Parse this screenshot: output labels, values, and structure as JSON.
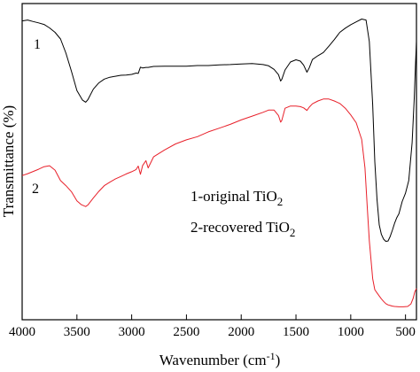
{
  "chart_data": {
    "type": "line",
    "xlabel": "Wavenumber (cm",
    "xlabel_sup": "-1",
    "xlabel_close": ")",
    "ylabel": "Transmittance (%)",
    "xlim": [
      4000,
      400
    ],
    "x_reversed": true,
    "ylim": [
      0,
      100
    ],
    "y_ticks_shown": false,
    "x_ticks": [
      4000,
      3500,
      3000,
      2500,
      2000,
      1500,
      1000,
      500
    ],
    "x_tick_labels": [
      "4000",
      "3500",
      "3000",
      "2500",
      "2000",
      "1500",
      "1000",
      "500"
    ],
    "grid": false,
    "legend": {
      "placement": "center-right",
      "entries": [
        {
          "prefix": "1-original TiO",
          "sub": "2"
        },
        {
          "prefix": "2-recovered TiO",
          "sub": "2"
        }
      ]
    },
    "series": [
      {
        "name": "1",
        "color": "#000000",
        "points": [
          [
            4000,
            94.5
          ],
          [
            3950,
            94.8
          ],
          [
            3900,
            94.3
          ],
          [
            3850,
            93.9
          ],
          [
            3800,
            93.4
          ],
          [
            3750,
            92.3
          ],
          [
            3700,
            90.9
          ],
          [
            3650,
            88.8
          ],
          [
            3600,
            84.3
          ],
          [
            3550,
            78.6
          ],
          [
            3500,
            72.5
          ],
          [
            3450,
            69.5
          ],
          [
            3420,
            68.8
          ],
          [
            3400,
            69.6
          ],
          [
            3350,
            72.9
          ],
          [
            3300,
            74.9
          ],
          [
            3250,
            76.1
          ],
          [
            3200,
            76.7
          ],
          [
            3150,
            77.0
          ],
          [
            3100,
            77.3
          ],
          [
            3050,
            77.4
          ],
          [
            3000,
            77.6
          ],
          [
            2960,
            78.0
          ],
          [
            2940,
            77.9
          ],
          [
            2920,
            79.9
          ],
          [
            2900,
            79.6
          ],
          [
            2870,
            79.8
          ],
          [
            2850,
            79.8
          ],
          [
            2800,
            80.1
          ],
          [
            2700,
            80.2
          ],
          [
            2600,
            80.2
          ],
          [
            2500,
            80.2
          ],
          [
            2400,
            80.4
          ],
          [
            2300,
            80.4
          ],
          [
            2200,
            80.6
          ],
          [
            2100,
            80.7
          ],
          [
            2000,
            80.9
          ],
          [
            1900,
            81.0
          ],
          [
            1800,
            80.7
          ],
          [
            1750,
            80.3
          ],
          [
            1700,
            79.2
          ],
          [
            1660,
            77.5
          ],
          [
            1640,
            75.5
          ],
          [
            1630,
            76.0
          ],
          [
            1600,
            79.0
          ],
          [
            1550,
            81.5
          ],
          [
            1500,
            82.2
          ],
          [
            1460,
            81.8
          ],
          [
            1430,
            80.5
          ],
          [
            1400,
            78.3
          ],
          [
            1380,
            79.6
          ],
          [
            1350,
            82.3
          ],
          [
            1300,
            83.5
          ],
          [
            1250,
            84.5
          ],
          [
            1200,
            86.5
          ],
          [
            1150,
            88.6
          ],
          [
            1100,
            90.9
          ],
          [
            1050,
            92.2
          ],
          [
            1000,
            93.3
          ],
          [
            950,
            94.2
          ],
          [
            900,
            95.1
          ],
          [
            860,
            94.8
          ],
          [
            830,
            88.0
          ],
          [
            800,
            68.0
          ],
          [
            780,
            50.0
          ],
          [
            760,
            38.0
          ],
          [
            740,
            30.0
          ],
          [
            720,
            27.0
          ],
          [
            700,
            25.5
          ],
          [
            680,
            24.8
          ],
          [
            660,
            24.9
          ],
          [
            640,
            26.3
          ],
          [
            620,
            28.3
          ],
          [
            600,
            30.5
          ],
          [
            580,
            32.3
          ],
          [
            560,
            33.5
          ],
          [
            530,
            37.4
          ],
          [
            500,
            40.0
          ],
          [
            470,
            44.0
          ],
          [
            440,
            56.0
          ],
          [
            420,
            70.0
          ],
          [
            410,
            80.0
          ],
          [
            400,
            88.0
          ]
        ]
      },
      {
        "name": "2",
        "color": "#e8202a",
        "points": [
          [
            4000,
            45.6
          ],
          [
            3950,
            46.2
          ],
          [
            3900,
            46.9
          ],
          [
            3850,
            47.6
          ],
          [
            3800,
            48.4
          ],
          [
            3750,
            48.7
          ],
          [
            3700,
            47.3
          ],
          [
            3650,
            44.0
          ],
          [
            3600,
            42.4
          ],
          [
            3550,
            40.5
          ],
          [
            3500,
            37.6
          ],
          [
            3460,
            36.4
          ],
          [
            3420,
            35.8
          ],
          [
            3400,
            36.3
          ],
          [
            3350,
            38.5
          ],
          [
            3300,
            40.6
          ],
          [
            3250,
            42.4
          ],
          [
            3200,
            43.5
          ],
          [
            3150,
            44.5
          ],
          [
            3100,
            45.3
          ],
          [
            3050,
            46.1
          ],
          [
            3000,
            46.8
          ],
          [
            2960,
            47.5
          ],
          [
            2940,
            48.6
          ],
          [
            2920,
            46.0
          ],
          [
            2900,
            48.8
          ],
          [
            2870,
            50.3
          ],
          [
            2850,
            48.0
          ],
          [
            2800,
            51.5
          ],
          [
            2700,
            53.7
          ],
          [
            2600,
            55.6
          ],
          [
            2500,
            56.9
          ],
          [
            2400,
            57.9
          ],
          [
            2300,
            59.4
          ],
          [
            2200,
            60.6
          ],
          [
            2100,
            61.8
          ],
          [
            2000,
            63.2
          ],
          [
            1900,
            64.4
          ],
          [
            1800,
            65.6
          ],
          [
            1750,
            66.3
          ],
          [
            1700,
            66.3
          ],
          [
            1660,
            64.6
          ],
          [
            1640,
            62.5
          ],
          [
            1630,
            63.0
          ],
          [
            1600,
            66.9
          ],
          [
            1550,
            67.6
          ],
          [
            1500,
            67.6
          ],
          [
            1460,
            67.4
          ],
          [
            1430,
            67.0
          ],
          [
            1400,
            66.2
          ],
          [
            1380,
            67.2
          ],
          [
            1350,
            68.3
          ],
          [
            1300,
            69.2
          ],
          [
            1250,
            69.8
          ],
          [
            1200,
            69.8
          ],
          [
            1150,
            69.2
          ],
          [
            1100,
            68.4
          ],
          [
            1050,
            66.9
          ],
          [
            1000,
            64.8
          ],
          [
            950,
            62.3
          ],
          [
            900,
            57.0
          ],
          [
            870,
            48.0
          ],
          [
            850,
            36.0
          ],
          [
            830,
            25.0
          ],
          [
            800,
            13.0
          ],
          [
            780,
            9.5
          ],
          [
            760,
            8.5
          ],
          [
            740,
            7.5
          ],
          [
            720,
            6.6
          ],
          [
            700,
            5.8
          ],
          [
            680,
            5.1
          ],
          [
            660,
            4.7
          ],
          [
            640,
            4.5
          ],
          [
            620,
            4.3
          ],
          [
            600,
            4.2
          ],
          [
            560,
            4.1
          ],
          [
            520,
            4.1
          ],
          [
            480,
            4.2
          ],
          [
            450,
            5.0
          ],
          [
            430,
            6.8
          ],
          [
            415,
            8.8
          ],
          [
            400,
            9.9
          ]
        ]
      }
    ]
  }
}
